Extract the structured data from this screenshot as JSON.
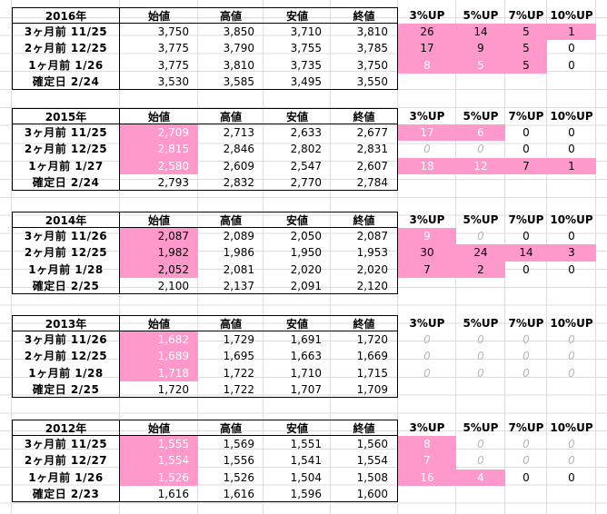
{
  "headers": {
    "open": "始値",
    "high": "高値",
    "low": "安値",
    "close": "終値",
    "u3": "3%UP",
    "u5": "5%UP",
    "u7": "7%UP",
    "u10": "10%UP"
  },
  "colors": {
    "highlight": "#ff99cc"
  },
  "blocks": [
    {
      "year": "2016年",
      "rows": [
        {
          "label": "3ヶ月前 11/25",
          "open": "3,750",
          "high": "3,850",
          "low": "3,710",
          "close": "3,810",
          "u3": "26",
          "u5": "14",
          "u7": "5",
          "u10": "1"
        },
        {
          "label": "2ヶ月前 12/25",
          "open": "3,775",
          "high": "3,790",
          "low": "3,755",
          "close": "3,785",
          "u3": "17",
          "u5": "9",
          "u7": "5",
          "u10": "0"
        },
        {
          "label": "1ヶ月前 1/26",
          "open": "3,775",
          "high": "3,810",
          "low": "3,735",
          "close": "3,750",
          "u3": "8",
          "u5": "5",
          "u7": "5",
          "u10": "0"
        },
        {
          "label": "確定日 2/24",
          "open": "3,530",
          "high": "3,585",
          "low": "3,495",
          "close": "3,550"
        }
      ]
    },
    {
      "year": "2015年",
      "rows": [
        {
          "label": "3ヶ月前 11/25",
          "open": "2,709",
          "high": "2,713",
          "low": "2,633",
          "close": "2,677",
          "u3": "17",
          "u5": "6",
          "u7": "0",
          "u10": "0"
        },
        {
          "label": "2ヶ月前 12/25",
          "open": "2,815",
          "high": "2,846",
          "low": "2,802",
          "close": "2,831",
          "u3": "0",
          "u5": "0",
          "u7": "0",
          "u10": "0"
        },
        {
          "label": "1ヶ月前 1/27",
          "open": "2,580",
          "high": "2,609",
          "low": "2,547",
          "close": "2,607",
          "u3": "18",
          "u5": "12",
          "u7": "7",
          "u10": "1"
        },
        {
          "label": "確定日 2/24",
          "open": "2,793",
          "high": "2,832",
          "low": "2,770",
          "close": "2,784"
        }
      ]
    },
    {
      "year": "2014年",
      "rows": [
        {
          "label": "3ヶ月前 11/26",
          "open": "2,087",
          "high": "2,089",
          "low": "2,050",
          "close": "2,087",
          "u3": "9",
          "u5": "0",
          "u7": "0",
          "u10": "0"
        },
        {
          "label": "2ヶ月前 12/25",
          "open": "1,982",
          "high": "1,986",
          "low": "1,950",
          "close": "1,953",
          "u3": "30",
          "u5": "24",
          "u7": "14",
          "u10": "3"
        },
        {
          "label": "1ヶ月前 1/28",
          "open": "2,052",
          "high": "2,081",
          "low": "2,020",
          "close": "2,020",
          "u3": "7",
          "u5": "2",
          "u7": "0",
          "u10": "0"
        },
        {
          "label": "確定日 2/25",
          "open": "2,100",
          "high": "2,137",
          "low": "2,091",
          "close": "2,120"
        }
      ]
    },
    {
      "year": "2013年",
      "rows": [
        {
          "label": "3ヶ月前 11/26",
          "open": "1,682",
          "high": "1,729",
          "low": "1,691",
          "close": "1,720",
          "u3": "0",
          "u5": "0",
          "u7": "0",
          "u10": "0"
        },
        {
          "label": "2ヶ月前 12/25",
          "open": "1,689",
          "high": "1,695",
          "low": "1,663",
          "close": "1,669",
          "u3": "0",
          "u5": "0",
          "u7": "0",
          "u10": "0"
        },
        {
          "label": "1ヶ月前 1/28",
          "open": "1,718",
          "high": "1,722",
          "low": "1,710",
          "close": "1,715",
          "u3": "0",
          "u5": "0",
          "u7": "0",
          "u10": "0"
        },
        {
          "label": "確定日 2/25",
          "open": "1,720",
          "high": "1,722",
          "low": "1,707",
          "close": "1,709"
        }
      ]
    },
    {
      "year": "2012年",
      "rows": [
        {
          "label": "3ヶ月前 11/25",
          "open": "1,555",
          "high": "1,569",
          "low": "1,551",
          "close": "1,560",
          "u3": "8",
          "u5": "0",
          "u7": "0",
          "u10": "0"
        },
        {
          "label": "2ヶ月前 12/27",
          "open": "1,554",
          "high": "1,556",
          "low": "1,541",
          "close": "1,554",
          "u3": "7",
          "u5": "0",
          "u7": "0",
          "u10": "0"
        },
        {
          "label": "1ヶ月前 1/26",
          "open": "1,526",
          "high": "1,526",
          "low": "1,504",
          "close": "1,508",
          "u3": "16",
          "u5": "4",
          "u7": "0",
          "u10": "0"
        },
        {
          "label": "確定日 2/23",
          "open": "1,616",
          "high": "1,616",
          "low": "1,596",
          "close": "1,600"
        }
      ]
    }
  ]
}
